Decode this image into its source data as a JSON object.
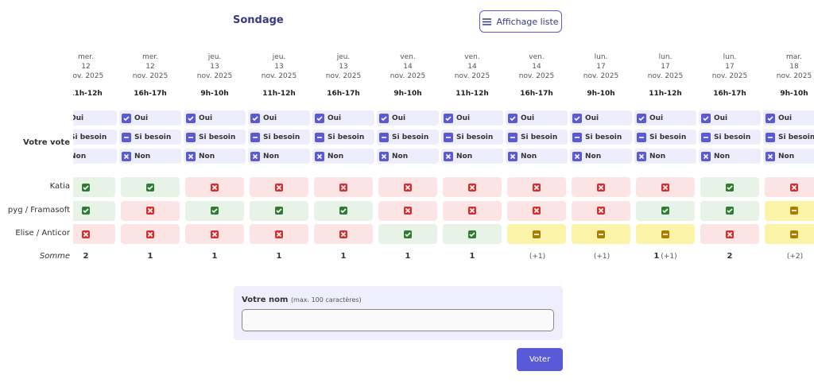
{
  "header": {
    "title": "Sondage",
    "view_button": "Affichage liste"
  },
  "poll": {
    "columns": [
      {
        "day": "mer.",
        "date": "12",
        "month": "nov. 2025",
        "time": "11h-12h"
      },
      {
        "day": "mer.",
        "date": "12",
        "month": "nov. 2025",
        "time": "16h-17h"
      },
      {
        "day": "jeu.",
        "date": "13",
        "month": "nov. 2025",
        "time": "9h-10h"
      },
      {
        "day": "jeu.",
        "date": "13",
        "month": "nov. 2025",
        "time": "11h-12h"
      },
      {
        "day": "jeu.",
        "date": "13",
        "month": "nov. 2025",
        "time": "16h-17h"
      },
      {
        "day": "ven.",
        "date": "14",
        "month": "nov. 2025",
        "time": "9h-10h"
      },
      {
        "day": "ven.",
        "date": "14",
        "month": "nov. 2025",
        "time": "11h-12h"
      },
      {
        "day": "ven.",
        "date": "14",
        "month": "nov. 2025",
        "time": "16h-17h"
      },
      {
        "day": "lun.",
        "date": "17",
        "month": "nov. 2025",
        "time": "9h-10h"
      },
      {
        "day": "lun.",
        "date": "17",
        "month": "nov. 2025",
        "time": "11h-12h"
      },
      {
        "day": "lun.",
        "date": "17",
        "month": "nov. 2025",
        "time": "16h-17h"
      },
      {
        "day": "mar.",
        "date": "18",
        "month": "nov. 2025",
        "time": "9h-10h"
      }
    ],
    "your_vote_label": "Votre vote",
    "options": [
      {
        "kind": "yes",
        "label": "Oui"
      },
      {
        "kind": "maybe",
        "label": "Si besoin"
      },
      {
        "kind": "no",
        "label": "Non"
      }
    ],
    "participants": [
      {
        "name": "Katia",
        "votes": [
          "yes",
          "yes",
          "no",
          "no",
          "no",
          "no",
          "no",
          "no",
          "no",
          "no",
          "yes",
          "no"
        ]
      },
      {
        "name": "pyg / Framasoft",
        "votes": [
          "yes",
          "no",
          "yes",
          "yes",
          "yes",
          "no",
          "no",
          "no",
          "no",
          "yes",
          "yes",
          "maybe"
        ]
      },
      {
        "name": "Elise / Anticor",
        "votes": [
          "no",
          "no",
          "no",
          "no",
          "no",
          "yes",
          "yes",
          "maybe",
          "maybe",
          "maybe",
          "no",
          "maybe"
        ]
      }
    ],
    "sum_label": "Somme",
    "sums": [
      {
        "yes": 2,
        "maybe": null
      },
      {
        "yes": 1,
        "maybe": null
      },
      {
        "yes": 1,
        "maybe": null
      },
      {
        "yes": 1,
        "maybe": null
      },
      {
        "yes": 1,
        "maybe": null
      },
      {
        "yes": 1,
        "maybe": null
      },
      {
        "yes": 1,
        "maybe": null
      },
      {
        "yes": null,
        "maybe": "(+1)"
      },
      {
        "yes": null,
        "maybe": "(+1)"
      },
      {
        "yes": 1,
        "maybe": "(+1)"
      },
      {
        "yes": 2,
        "maybe": null
      },
      {
        "yes": null,
        "maybe": "(+2)"
      }
    ]
  },
  "form": {
    "name_label": "Votre nom",
    "name_hint": "(max. 100 caractères)",
    "submit": "Voter"
  }
}
